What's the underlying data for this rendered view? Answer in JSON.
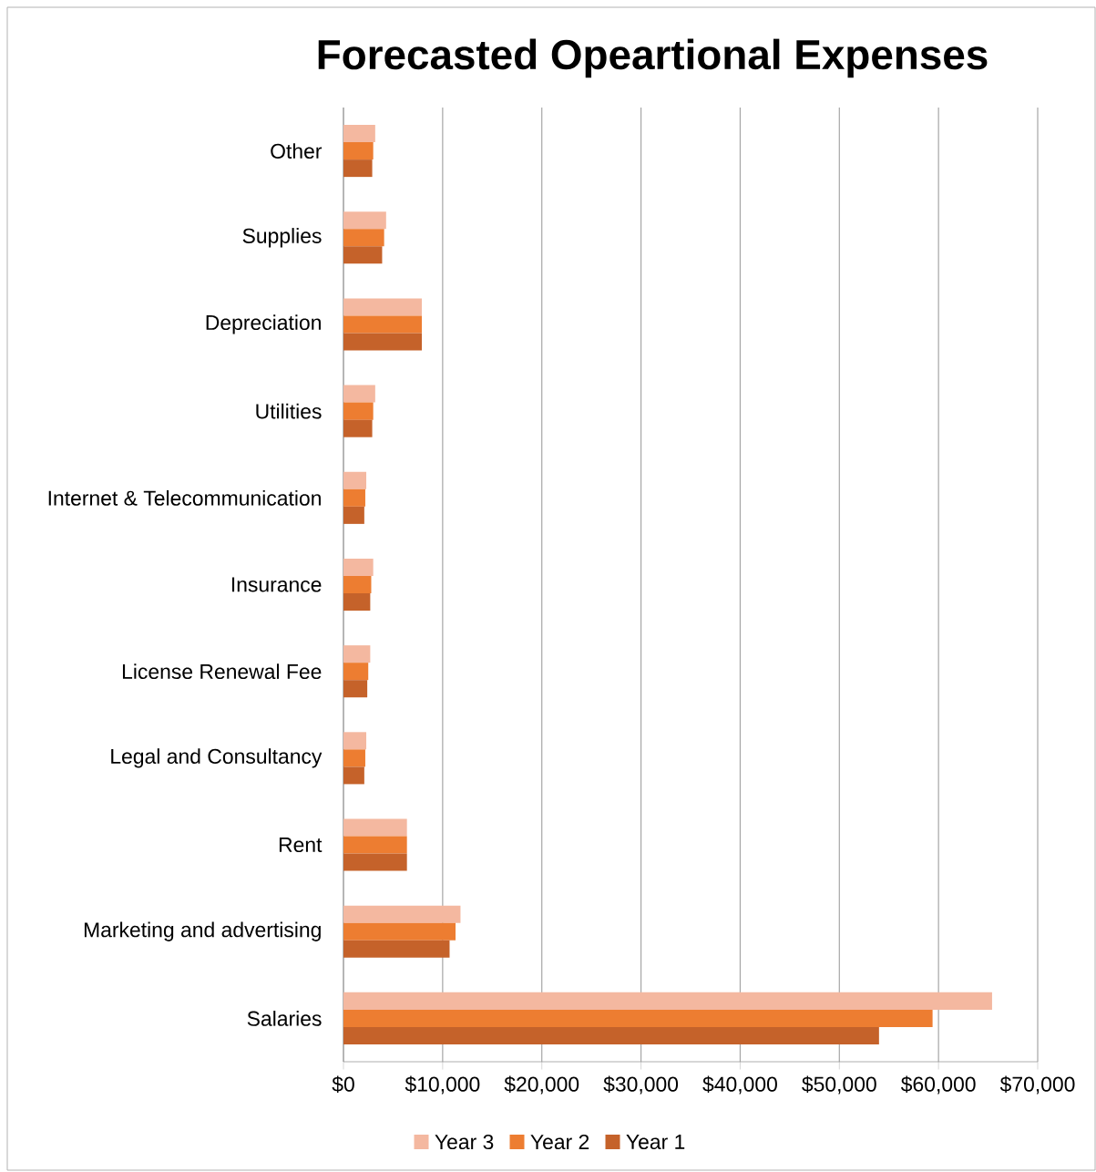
{
  "chart_data": {
    "type": "bar",
    "orientation": "horizontal",
    "title": "Forecasted Opeartional Expenses",
    "categories": [
      "Other",
      "Supplies",
      "Depreciation",
      "Utilities",
      "Internet & Telecommunication",
      "Insurance",
      "License  Renewal Fee",
      "Legal and Consultancy",
      "Rent",
      "Marketing and advertising",
      "Salaries"
    ],
    "series": [
      {
        "name": "Year 3",
        "color": "#f4b8a0",
        "values": [
          3200,
          4300,
          7900,
          3200,
          2300,
          3000,
          2700,
          2300,
          6400,
          11800,
          65400
        ]
      },
      {
        "name": "Year 2",
        "color": "#ed7d31",
        "values": [
          3000,
          4100,
          7900,
          3000,
          2200,
          2800,
          2500,
          2200,
          6400,
          11300,
          59400
        ]
      },
      {
        "name": "Year 1",
        "color": "#c5622a",
        "values": [
          2900,
          3900,
          7900,
          2900,
          2100,
          2700,
          2400,
          2100,
          6400,
          10700,
          54000
        ]
      }
    ],
    "xlim": [
      0,
      70000
    ],
    "xticks": [
      {
        "value": 0,
        "label": "$0"
      },
      {
        "value": 10000,
        "label": "$10,000"
      },
      {
        "value": 20000,
        "label": "$20,000"
      },
      {
        "value": 30000,
        "label": "$30,000"
      },
      {
        "value": 40000,
        "label": "$40,000"
      },
      {
        "value": 50000,
        "label": "$50,000"
      },
      {
        "value": 60000,
        "label": "$60,000"
      },
      {
        "value": 70000,
        "label": "$70,000"
      }
    ],
    "grid": "x",
    "legend": "bottom"
  }
}
